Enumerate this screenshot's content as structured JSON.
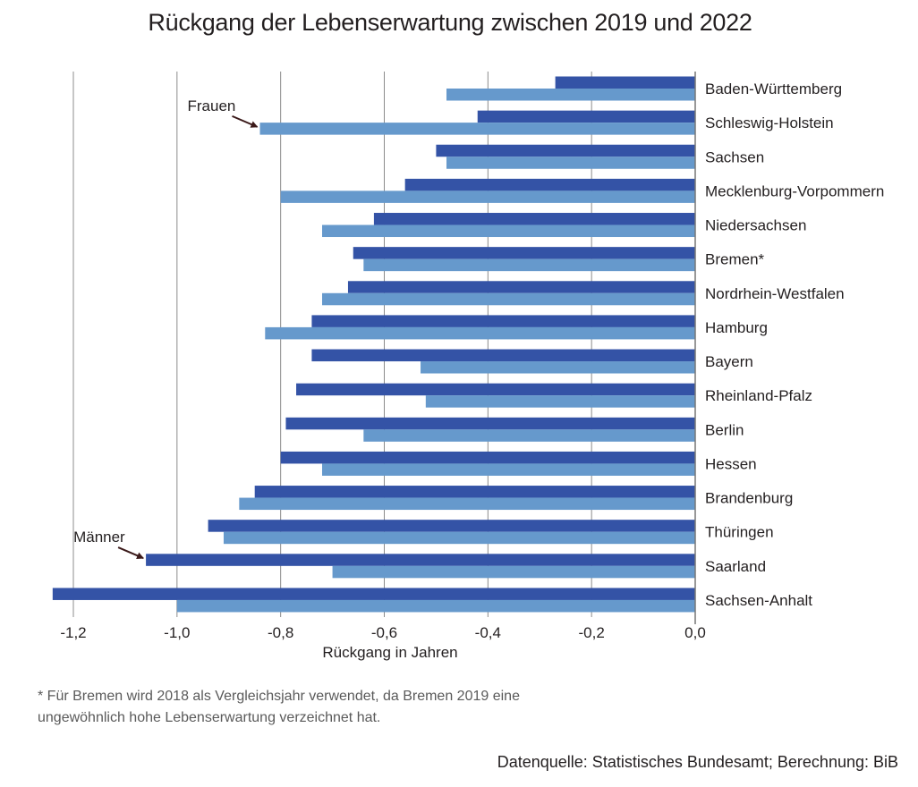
{
  "chart_data": {
    "type": "bar",
    "orientation": "horizontal",
    "title": "Rückgang der Lebenserwartung zwischen 2019 und 2022",
    "xlabel": "Rückgang in Jahren",
    "ylabel": "",
    "xlim": [
      -1.2,
      0.0
    ],
    "xticks": [
      -1.2,
      -1.0,
      -0.8,
      -0.6,
      -0.4,
      -0.2,
      0.0
    ],
    "xtick_labels": [
      "-1,2",
      "-1,0",
      "-0,8",
      "-0,6",
      "-0,4",
      "-0,2",
      "0,0"
    ],
    "grid": "vertical",
    "categories": [
      "Baden-Württemberg",
      "Schleswig-Holstein",
      "Sachsen",
      "Mecklenburg-Vorpommern",
      "Niedersachsen",
      "Bremen*",
      "Nordrhein-Westfalen",
      "Hamburg",
      "Bayern",
      "Rheinland-Pfalz",
      "Berlin",
      "Hessen",
      "Brandenburg",
      "Thüringen",
      "Saarland",
      "Sachsen-Anhalt"
    ],
    "series": [
      {
        "name": "Männer",
        "color": "#3453a6",
        "values": [
          -0.27,
          -0.42,
          -0.5,
          -0.56,
          -0.62,
          -0.66,
          -0.67,
          -0.74,
          -0.74,
          -0.77,
          -0.79,
          -0.8,
          -0.85,
          -0.94,
          -1.06,
          -1.24
        ]
      },
      {
        "name": "Frauen",
        "color": "#6699cc",
        "values": [
          -0.48,
          -0.84,
          -0.48,
          -0.8,
          -0.72,
          -0.64,
          -0.72,
          -0.83,
          -0.53,
          -0.52,
          -0.64,
          -0.72,
          -0.88,
          -0.91,
          -0.7,
          -1.0
        ]
      }
    ],
    "annotations": [
      {
        "text": "Frauen",
        "points_to": "Schleswig-Holstein",
        "series": "Frauen"
      },
      {
        "text": "Männer",
        "points_to": "Saarland",
        "series": "Männer"
      }
    ],
    "footnote": [
      "* Für Bremen wird 2018 als Vergleichsjahr verwendet, da Bremen 2019 eine",
      "ungewöhnlich hohe Lebenserwartung verzeichnet hat."
    ],
    "source": "Datenquelle: Statistisches Bundesamt; Berechnung: BiB"
  },
  "colors": {
    "grid": "#8c8c8c",
    "axis": "#777777",
    "arrow": "#3b1a1a",
    "text": "#231f20"
  }
}
